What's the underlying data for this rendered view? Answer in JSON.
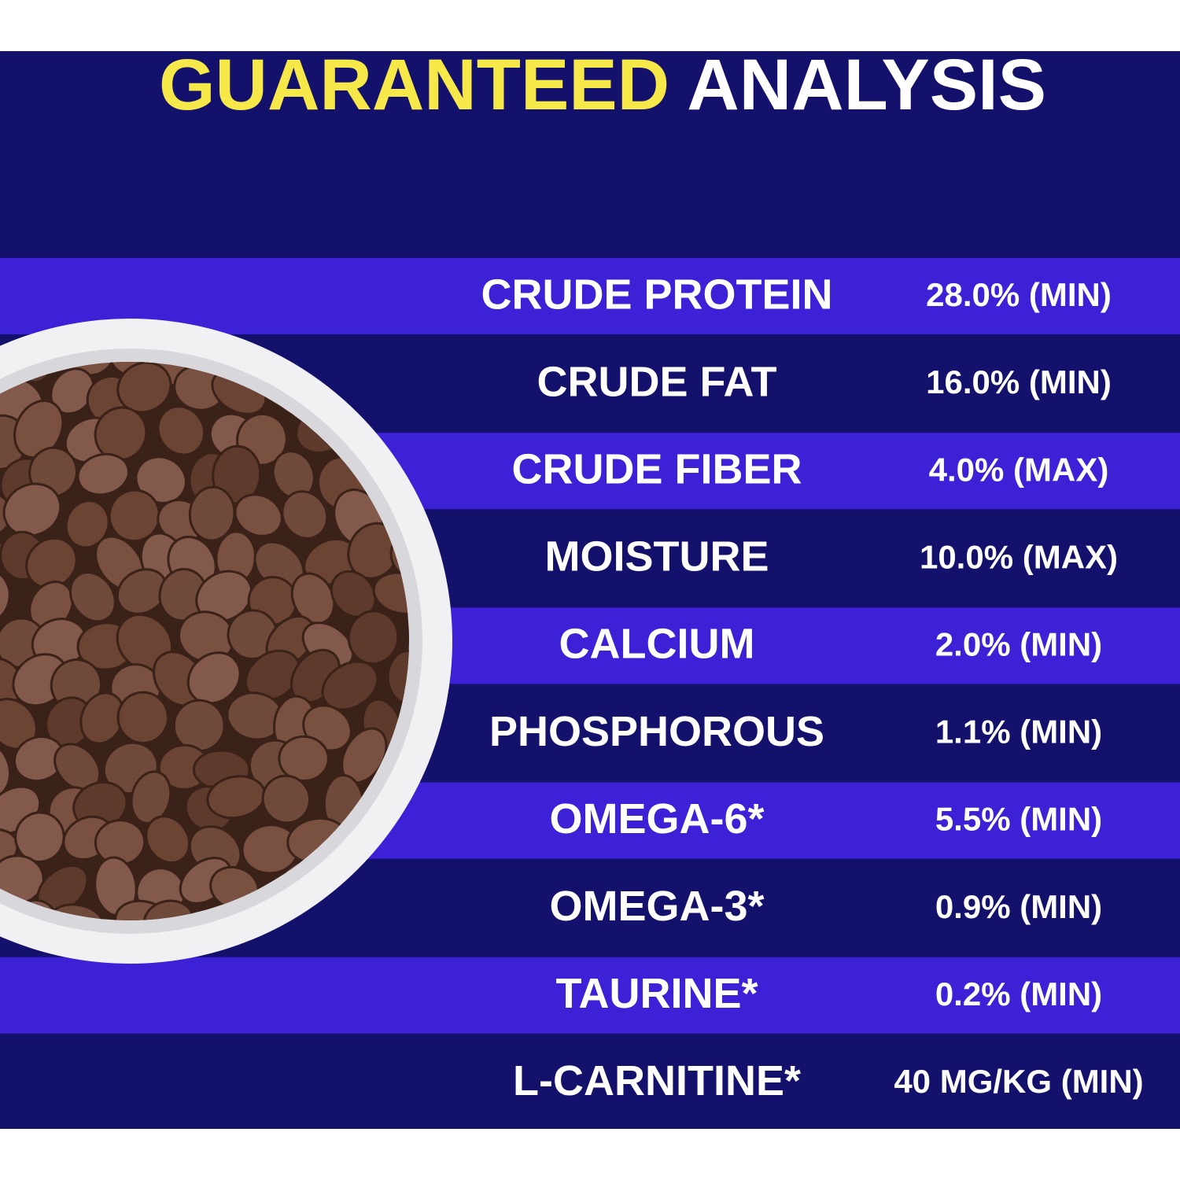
{
  "title": {
    "highlight": "GUARANTEED",
    "rest": "ANALYSIS"
  },
  "rows": [
    {
      "name": "CRUDE PROTEIN",
      "value": "28.0% (MIN)"
    },
    {
      "name": "CRUDE FAT",
      "value": "16.0% (MIN)"
    },
    {
      "name": "CRUDE FIBER",
      "value": "4.0% (MAX)"
    },
    {
      "name": "MOISTURE",
      "value": "10.0% (MAX)"
    },
    {
      "name": "CALCIUM",
      "value": "2.0% (MIN)"
    },
    {
      "name": "PHOSPHOROUS",
      "value": "1.1% (MIN)"
    },
    {
      "name": "OMEGA-6*",
      "value": "5.5% (MIN)"
    },
    {
      "name": "OMEGA-3*",
      "value": "0.9% (MIN)"
    },
    {
      "name": "TAURINE*",
      "value": "0.2% (MIN)"
    },
    {
      "name": "L-CARNITINE*",
      "value": "40 MG/KG (MIN)"
    }
  ]
}
